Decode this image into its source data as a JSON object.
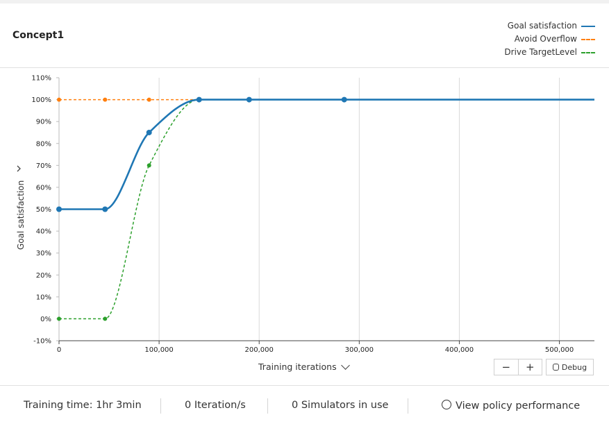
{
  "header": {
    "title": "Concept1",
    "legend": [
      {
        "label": "Goal satisfaction",
        "color": "#1f77b4",
        "style": "solid"
      },
      {
        "label": "Avoid Overflow",
        "color": "#ff7f0e",
        "style": "dashed"
      },
      {
        "label": "Drive TargetLevel",
        "color": "#2ca02c",
        "style": "dashed"
      }
    ]
  },
  "chart_data": {
    "type": "line",
    "xlabel": "Training iterations",
    "ylabel": "Goal satisfaction",
    "xlim": [
      0,
      535000
    ],
    "ylim": [
      -10,
      110
    ],
    "x_ticks": [
      0,
      100000,
      200000,
      300000,
      400000,
      500000
    ],
    "x_tick_labels": [
      "0",
      "100,000",
      "200,000",
      "300,000",
      "400,000",
      "500,000"
    ],
    "y_ticks": [
      -10,
      0,
      10,
      20,
      30,
      40,
      50,
      60,
      70,
      80,
      90,
      100,
      110
    ],
    "y_tick_labels": [
      "-10%",
      "0%",
      "10%",
      "20%",
      "30%",
      "40%",
      "50%",
      "60%",
      "70%",
      "80%",
      "90%",
      "100%",
      "110%"
    ],
    "grid": "vertical",
    "legend_position": "top-right",
    "series": [
      {
        "name": "Goal satisfaction",
        "color": "#1f77b4",
        "style": "solid",
        "x": [
          0,
          46000,
          90000,
          140000,
          190000,
          285000,
          535000
        ],
        "y": [
          50,
          50,
          85,
          100,
          100,
          100,
          100
        ],
        "markers": [
          0,
          1,
          2,
          3,
          4,
          5
        ]
      },
      {
        "name": "Avoid Overflow",
        "color": "#ff7f0e",
        "style": "dashed",
        "x": [
          0,
          46000,
          90000,
          140000,
          190000,
          285000,
          535000
        ],
        "y": [
          100,
          100,
          100,
          100,
          100,
          100,
          100
        ],
        "markers": [
          0,
          1,
          2
        ]
      },
      {
        "name": "Drive TargetLevel",
        "color": "#2ca02c",
        "style": "dashed",
        "x": [
          0,
          46000,
          90000,
          140000,
          190000
        ],
        "y": [
          0,
          0,
          70,
          100,
          100
        ],
        "markers": [
          0,
          1,
          2
        ]
      }
    ]
  },
  "controls": {
    "zoom_out": "−",
    "zoom_in": "+",
    "debug_label": "Debug"
  },
  "footer": {
    "training_time": "Training time: 1hr 3min",
    "iterations": "0 Iteration/s",
    "simulators": "0 Simulators in use",
    "view_policy": "View policy performance"
  }
}
